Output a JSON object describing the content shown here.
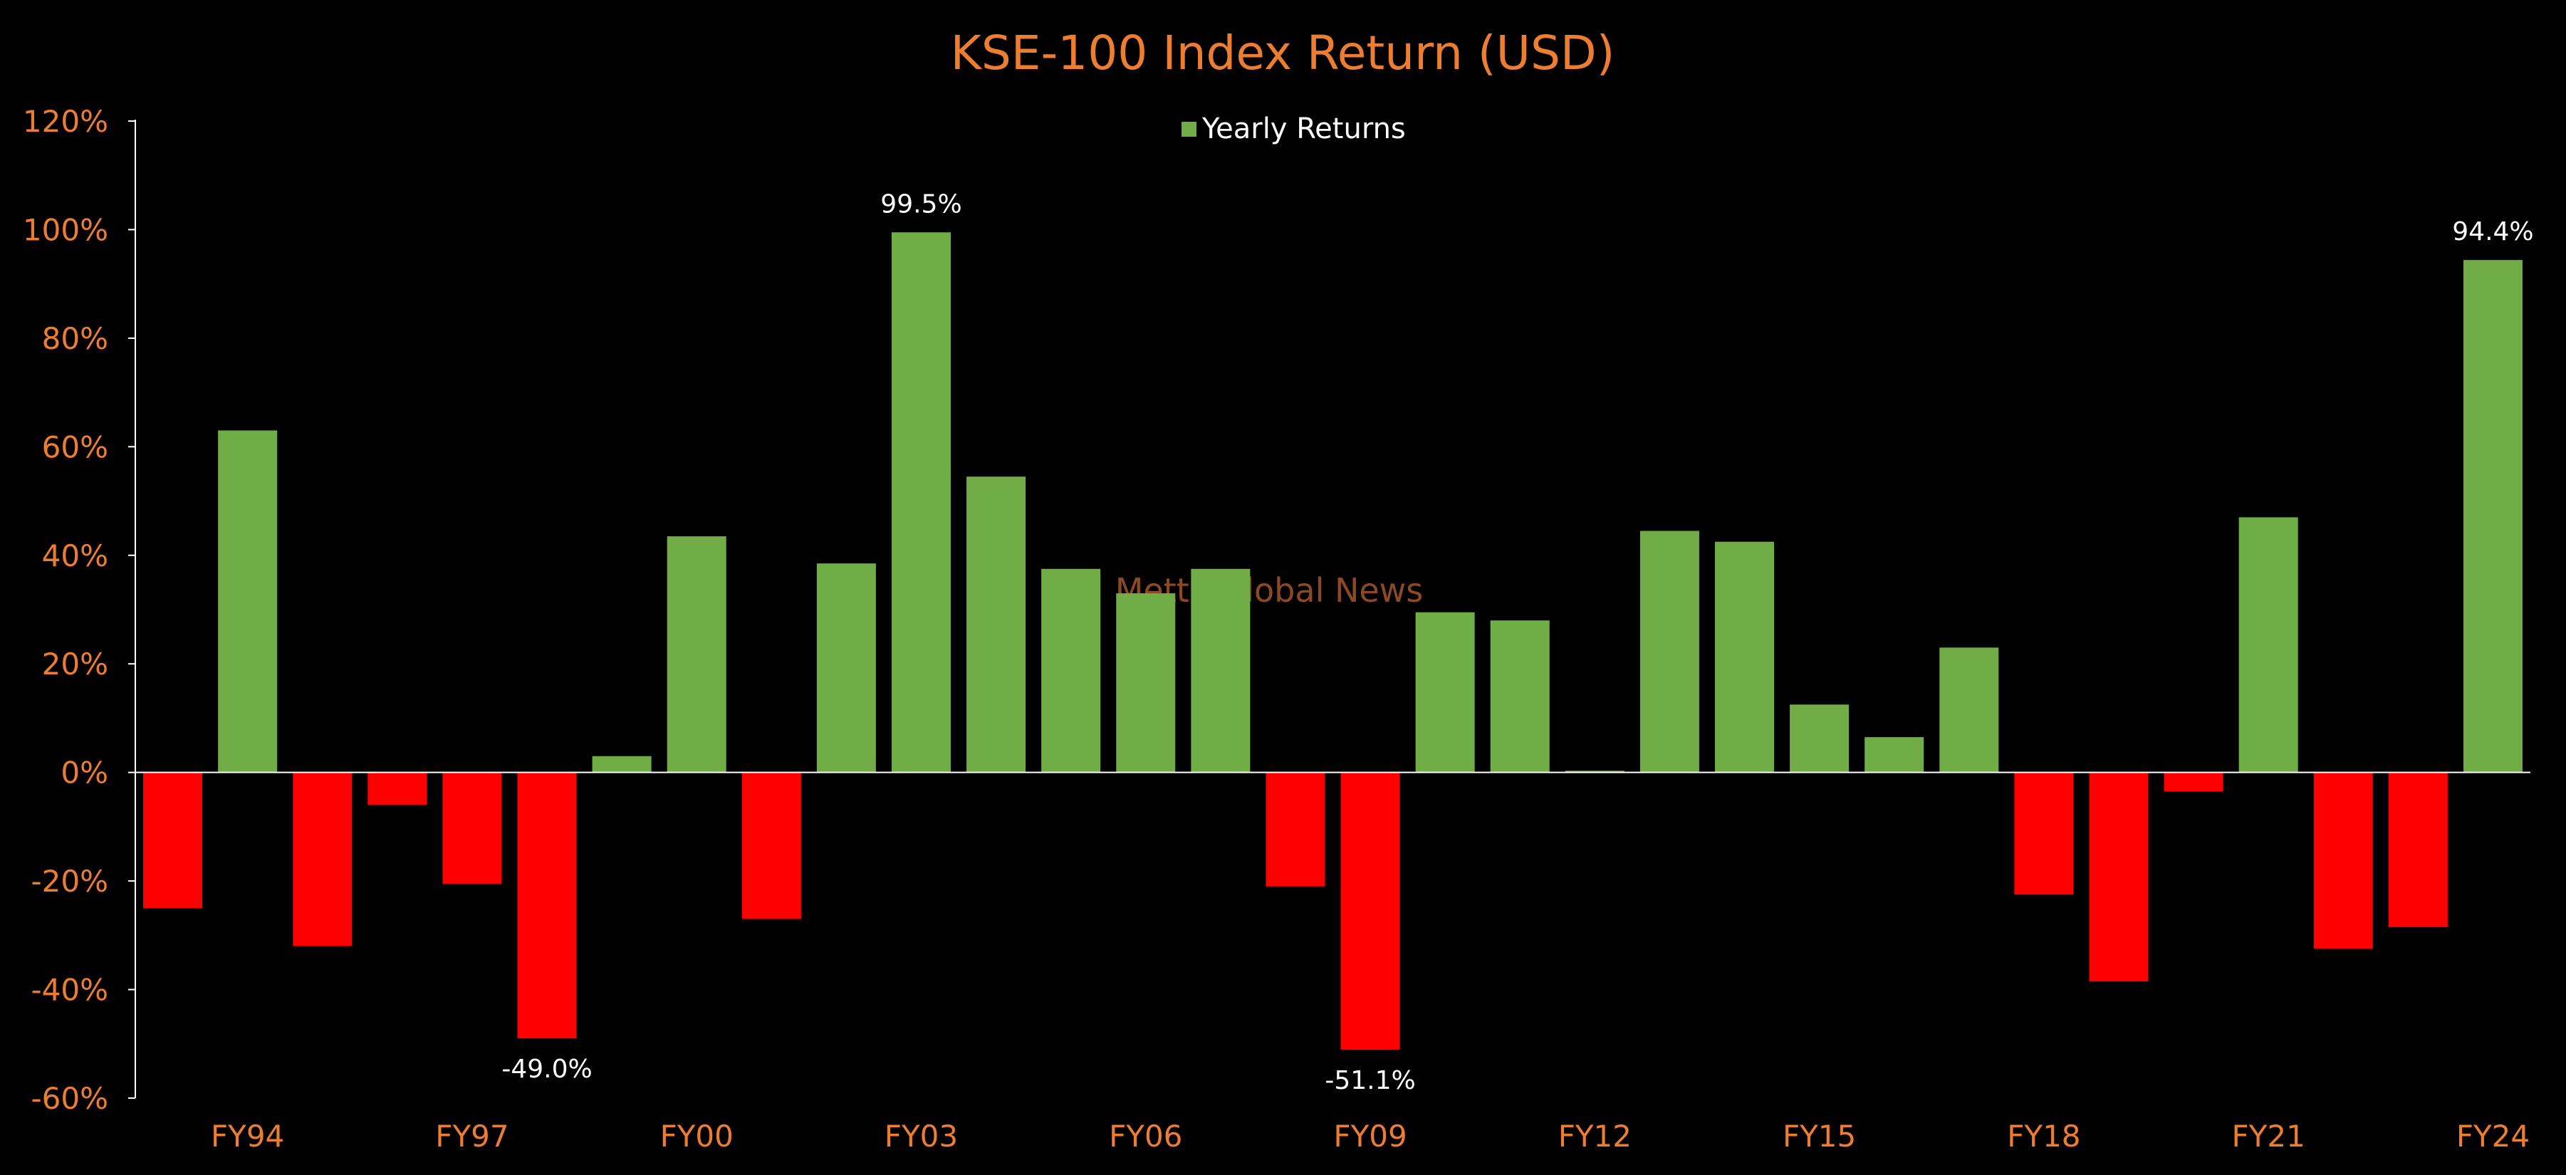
{
  "colors": {
    "background": "#000000",
    "positive_bar": "#70ad47",
    "negative_bar": "#ff0000",
    "axis_text": "#ed7d31",
    "axis_line": "#ffffff",
    "data_label": "#ffffff",
    "watermark": "#8b4a23"
  },
  "watermark": "Metta Global News",
  "chart_data": {
    "type": "bar",
    "title": "KSE-100 Index Return (USD)",
    "xlabel": "",
    "ylabel": "",
    "ylim": [
      -60,
      120
    ],
    "yticks": [
      -60,
      -40,
      -20,
      0,
      20,
      40,
      60,
      80,
      100,
      120
    ],
    "ytick_labels": [
      "-60%",
      "-40%",
      "-20%",
      "0%",
      "20%",
      "40%",
      "60%",
      "80%",
      "100%",
      "120%"
    ],
    "categories": [
      "FY93",
      "FY94",
      "FY95",
      "FY96",
      "FY97",
      "FY98",
      "FY99",
      "FY00",
      "FY01",
      "FY02",
      "FY03",
      "FY04",
      "FY05",
      "FY06",
      "FY07",
      "FY08",
      "FY09",
      "FY10",
      "FY11",
      "FY12",
      "FY13",
      "FY14",
      "FY15",
      "FY16",
      "FY17",
      "FY18",
      "FY19",
      "FY20",
      "FY21",
      "FY22",
      "FY23",
      "FY24"
    ],
    "xtick_labels": [
      "FY94",
      "FY97",
      "FY00",
      "FY03",
      "FY06",
      "FY09",
      "FY12",
      "FY15",
      "FY18",
      "FY21",
      "FY24"
    ],
    "series": [
      {
        "name": "Yearly Returns",
        "values": [
          -25,
          63,
          -32,
          -6,
          -20.5,
          -49.0,
          3,
          43.5,
          -27,
          38.5,
          99.5,
          54.5,
          37.5,
          33,
          37.5,
          -21,
          -51.1,
          29.5,
          28,
          0.3,
          44.5,
          42.5,
          12.5,
          6.5,
          23,
          -22.5,
          -38.5,
          -3.5,
          47,
          -32.5,
          -28.5,
          94.4
        ]
      }
    ],
    "data_labels": [
      {
        "category": "FY98",
        "text": "-49.0%"
      },
      {
        "category": "FY03",
        "text": "99.5%"
      },
      {
        "category": "FY09",
        "text": "-51.1%"
      },
      {
        "category": "FY24",
        "text": "94.4%"
      }
    ],
    "legend": {
      "position": "top-center"
    },
    "grid": false
  }
}
